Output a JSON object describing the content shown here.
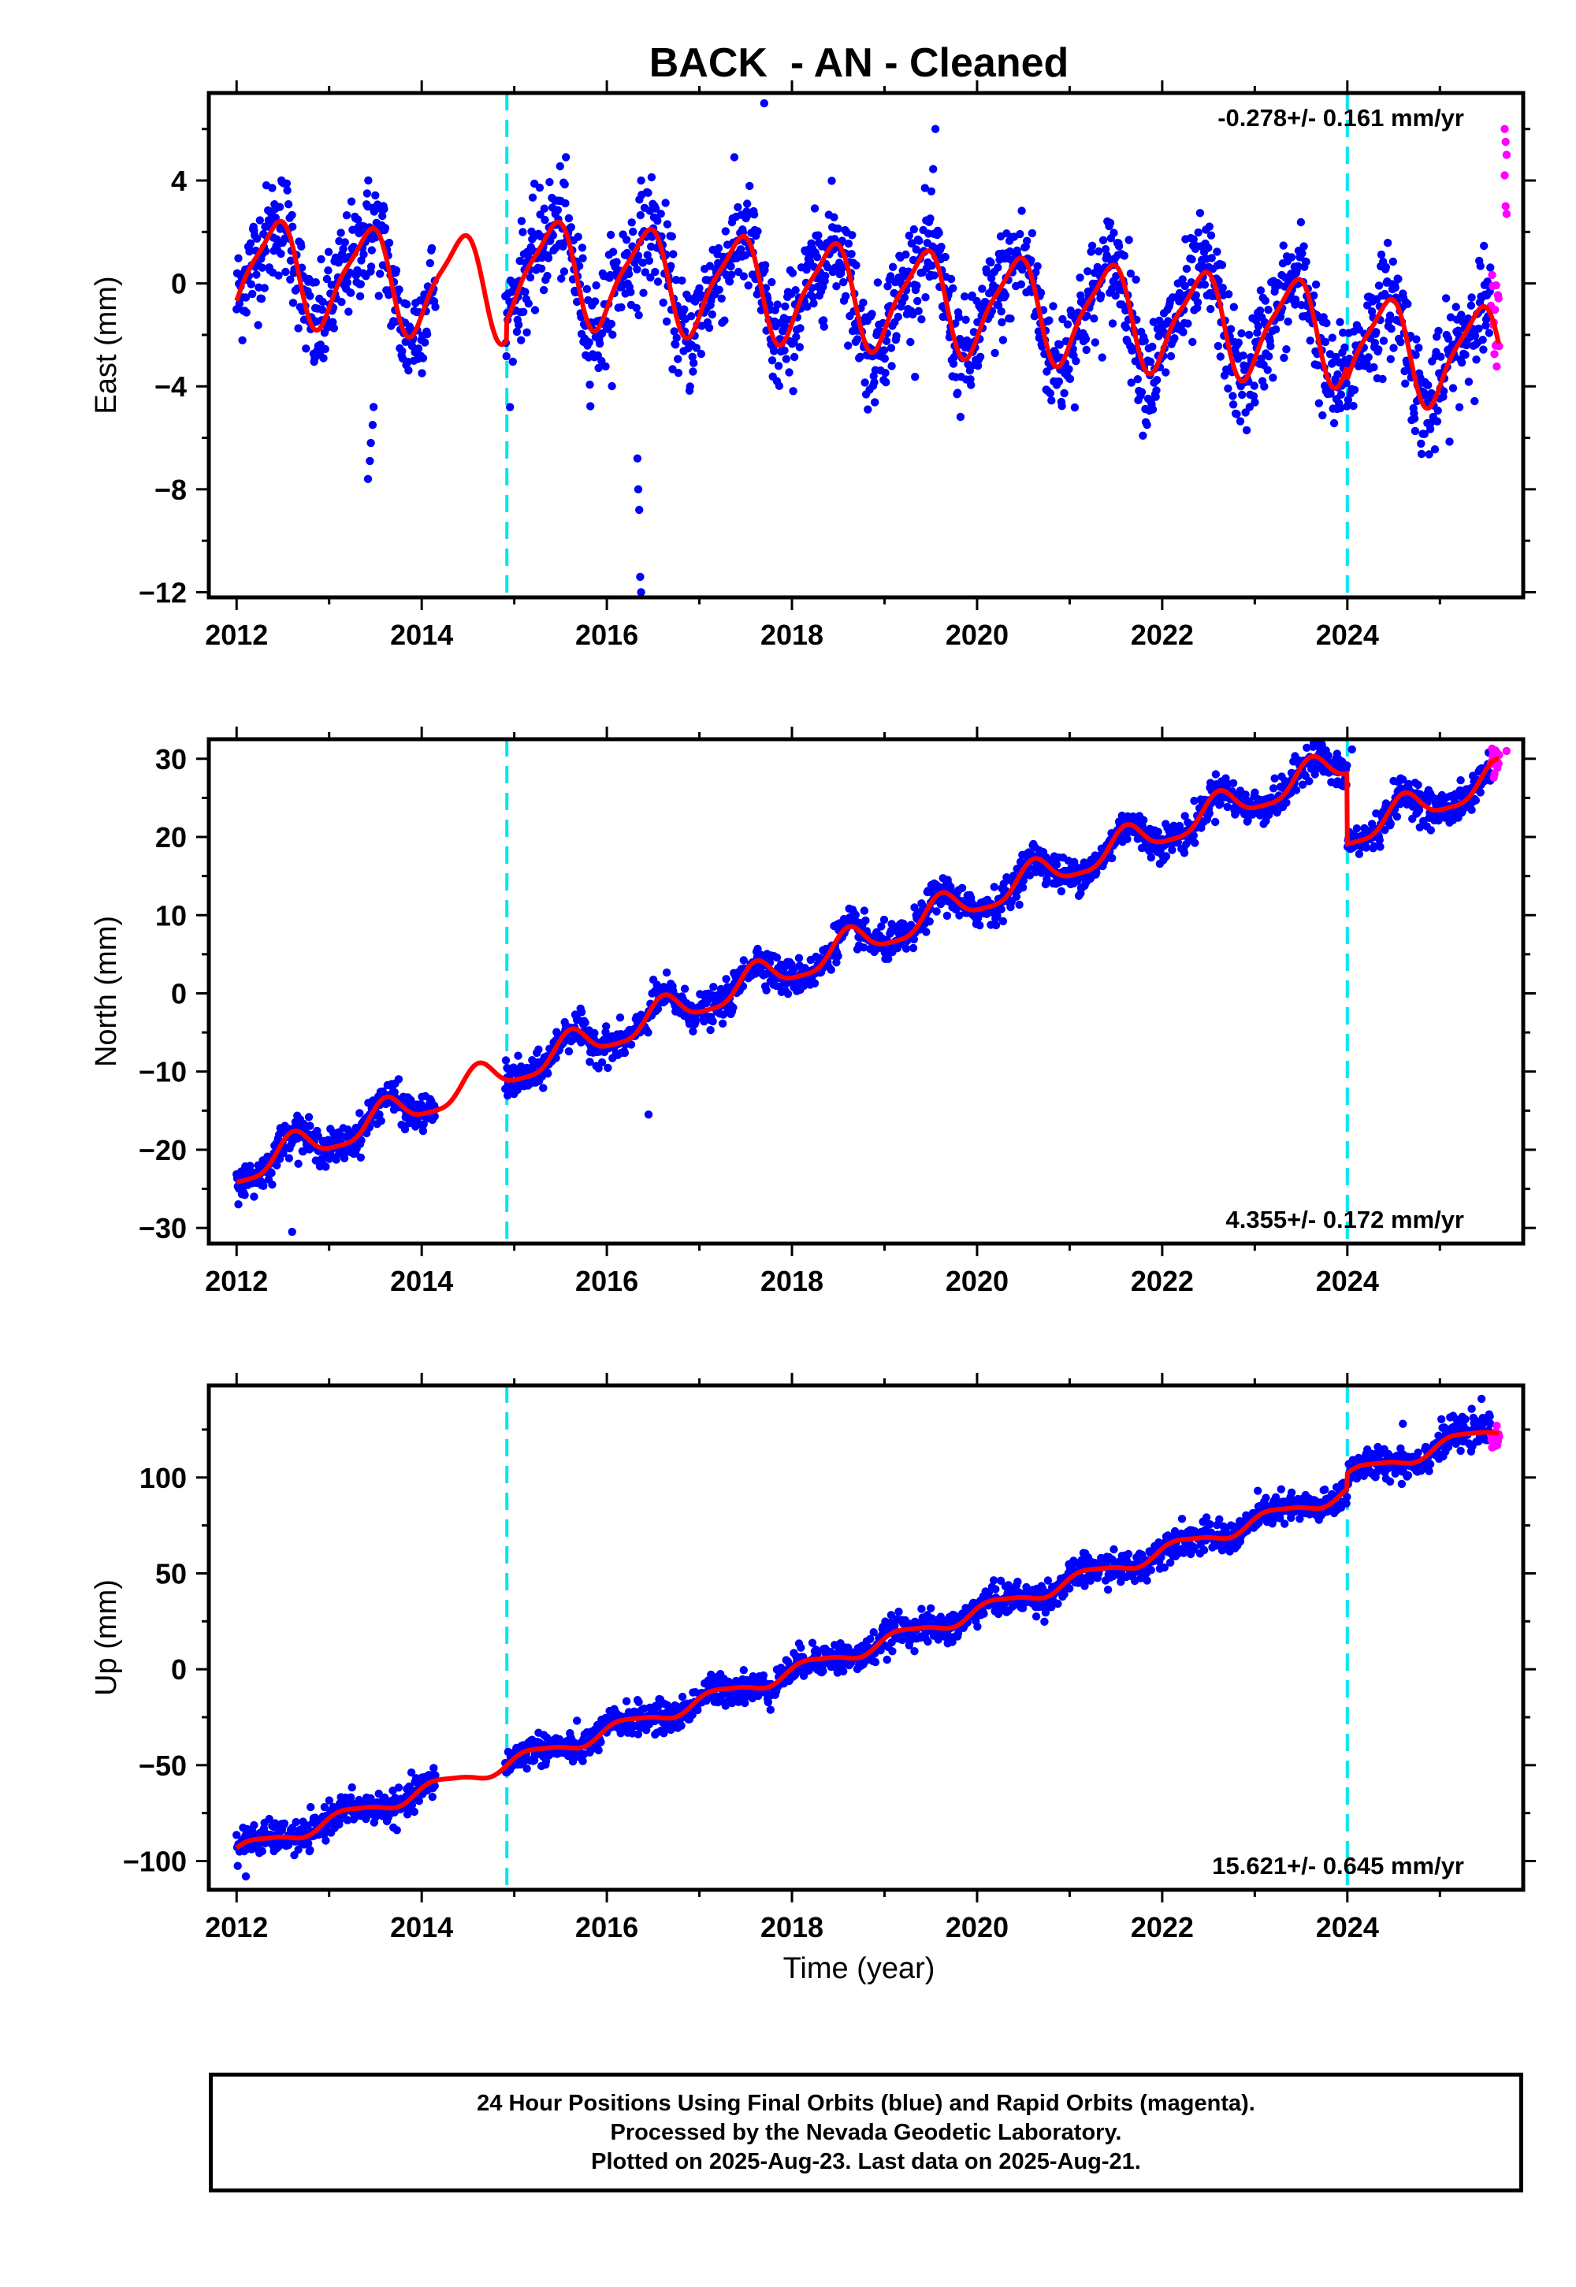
{
  "title": "BACK  - AN - Cleaned",
  "xlabel": "Time (year)",
  "caption": [
    "24 Hour Positions Using Final Orbits (blue) and Rapid Orbits (magenta).",
    "Processed by the Nevada Geodetic Laboratory.",
    "Plotted on 2025-Aug-23. Last data on 2025-Aug-21."
  ],
  "colors": {
    "final_orbits": "#0000ff",
    "rapid_orbits": "#ff00ff",
    "model": "#ff0000",
    "event_lines": "#00e5ee"
  },
  "chart_data": [
    {
      "type": "scatter",
      "component": "east",
      "ylabel": "East (mm)",
      "rate_label": "-0.278+/- 0.161 mm/yr",
      "rate_position": "top-right",
      "xlim": [
        2011.7,
        2025.9
      ],
      "ylim": [
        -12.2,
        7.4
      ],
      "xticks": [
        2012,
        2014,
        2016,
        2018,
        2020,
        2022,
        2024
      ],
      "yticks": [
        4,
        0,
        -4,
        -8,
        -12
      ],
      "ytick_labels": [
        "4",
        "0",
        "−4",
        "−8",
        "−12"
      ],
      "minor_xtick_step": 1,
      "minor_ytick_step": 2,
      "event_lines": [
        2014.92,
        2024.0
      ],
      "trend": {
        "t0": 2012.0,
        "intercept": 0.6,
        "rate": -0.278
      },
      "model_seasonal": {
        "annual_amp": 1.9,
        "annual_phase": -1.0,
        "semiannual_amp": 0.45,
        "semiannual_phase": 0.8
      },
      "model_offsets": [
        {
          "year": 2014.92,
          "offset": 0.8
        },
        {
          "year": 2024.0,
          "offset": -0.5
        }
      ],
      "data_gap": [
        2014.15,
        2014.9
      ],
      "scatter_sigma": 1.05,
      "rapid_start": 2025.55,
      "outliers": [
        {
          "x": 2013.42,
          "y": -7.6
        },
        {
          "x": 2013.44,
          "y": -6.9
        },
        {
          "x": 2013.45,
          "y": -6.2
        },
        {
          "x": 2013.47,
          "y": -5.5
        },
        {
          "x": 2013.48,
          "y": -4.8
        },
        {
          "x": 2016.33,
          "y": -6.8
        },
        {
          "x": 2016.34,
          "y": -8.0
        },
        {
          "x": 2016.35,
          "y": -8.8
        },
        {
          "x": 2016.36,
          "y": -11.4
        },
        {
          "x": 2016.37,
          "y": -12.0
        },
        {
          "x": 2017.7,
          "y": 7.0
        },
        {
          "x": 2019.55,
          "y": 6.0
        },
        {
          "x": 2025.7,
          "y": 6.0
        },
        {
          "x": 2025.71,
          "y": 5.5
        },
        {
          "x": 2025.72,
          "y": 5.0
        },
        {
          "x": 2025.7,
          "y": 4.2
        },
        {
          "x": 2025.71,
          "y": 3.0
        },
        {
          "x": 2025.72,
          "y": 2.7
        }
      ]
    },
    {
      "type": "scatter",
      "component": "north",
      "ylabel": "North (mm)",
      "rate_label": "4.355+/- 0.172 mm/yr",
      "rate_position": "bottom-right",
      "xlim": [
        2011.7,
        2025.9
      ],
      "ylim": [
        -32,
        32.5
      ],
      "xticks": [
        2012,
        2014,
        2016,
        2018,
        2020,
        2022,
        2024
      ],
      "yticks": [
        30,
        20,
        10,
        0,
        -10,
        -20,
        -30
      ],
      "ytick_labels": [
        "30",
        "20",
        "10",
        "0",
        "−10",
        "−20",
        "−30"
      ],
      "minor_xtick_step": 1,
      "minor_ytick_step": 5,
      "event_lines": [
        2014.92,
        2024.0
      ],
      "trend": {
        "t0": 2012.0,
        "intercept": -22.8,
        "rate": 4.355
      },
      "model_seasonal": {
        "annual_amp": 2.0,
        "annual_phase": -2.3,
        "semiannual_amp": 0.5,
        "semiannual_phase": 0.3
      },
      "model_offsets": [
        {
          "year": 2014.92,
          "offset": 0.0
        },
        {
          "year": 2024.0,
          "offset": -9.0
        }
      ],
      "data_gap": [
        2014.15,
        2014.9
      ],
      "scatter_sigma": 1.1,
      "rapid_start": 2025.55,
      "outliers": [
        {
          "x": 2012.6,
          "y": -30.5
        },
        {
          "x": 2016.45,
          "y": -15.5
        },
        {
          "x": 2025.72,
          "y": 31.0
        },
        {
          "x": 2024.05,
          "y": 31.2
        }
      ]
    },
    {
      "type": "scatter",
      "component": "up",
      "ylabel": "Up (mm)",
      "rate_label": "15.621+/- 0.645 mm/yr",
      "rate_position": "bottom-right",
      "xlim": [
        2011.7,
        2025.9
      ],
      "ylim": [
        -115,
        148
      ],
      "xticks": [
        2012,
        2014,
        2016,
        2018,
        2020,
        2022,
        2024
      ],
      "yticks": [
        100,
        50,
        0,
        -50,
        -100
      ],
      "ytick_labels": [
        "100",
        "50",
        "0",
        "−50",
        "−100"
      ],
      "minor_xtick_step": 1,
      "minor_ytick_step": 25,
      "event_lines": [
        2014.92,
        2024.0
      ],
      "trend": {
        "t0": 2012.0,
        "intercept": -95.0,
        "rate": 15.621
      },
      "model_seasonal": {
        "annual_amp": 3.5,
        "annual_phase": 0.3,
        "semiannual_amp": 0.8,
        "semiannual_phase": 1.1
      },
      "model_offsets": [
        {
          "year": 2014.92,
          "offset": 0.0
        },
        {
          "year": 2024.0,
          "offset": 8.0
        }
      ],
      "data_gap": [
        2014.15,
        2014.9
      ],
      "scatter_sigma": 4.0,
      "rapid_start": 2025.55,
      "outliers": [
        {
          "x": 2012.1,
          "y": -108.0
        },
        {
          "x": 2025.45,
          "y": 141.0
        },
        {
          "x": 2024.6,
          "y": 128.0
        }
      ]
    }
  ]
}
